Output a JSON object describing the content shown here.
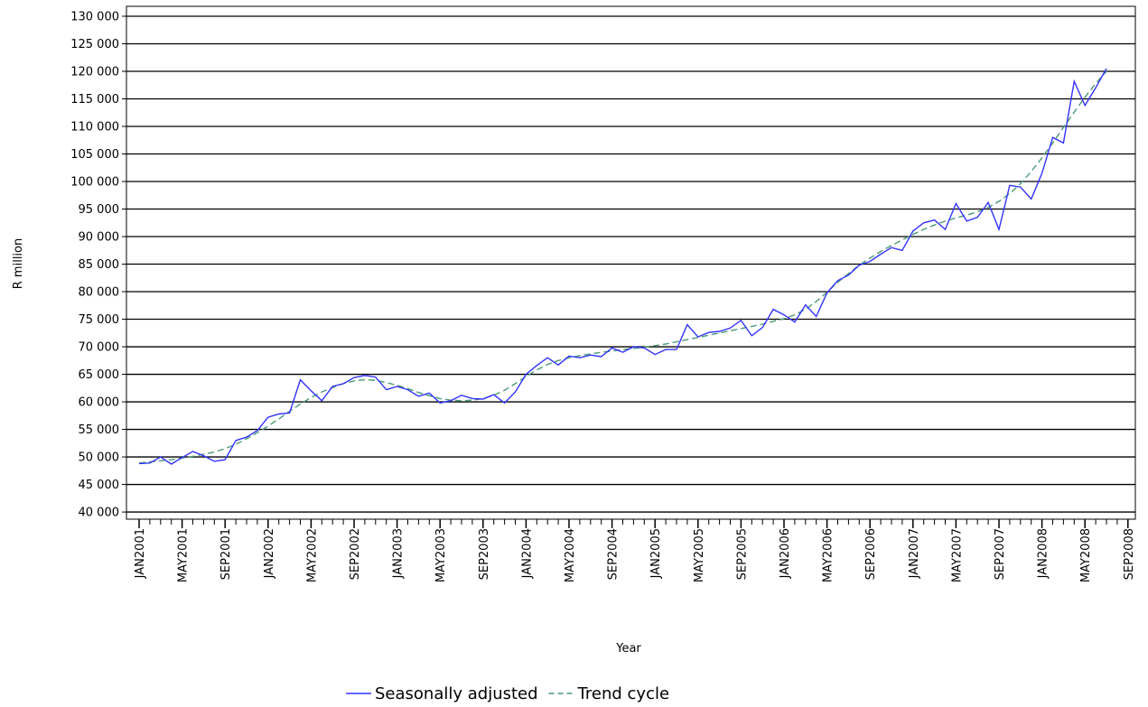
{
  "chart_data": {
    "type": "line",
    "y_label": "R million",
    "x_label": "Year",
    "categories": [
      "JAN2001",
      null,
      null,
      null,
      "MAY2001",
      null,
      null,
      null,
      "SEP2001",
      null,
      null,
      null,
      "JAN2002",
      null,
      null,
      null,
      "MAY2002",
      null,
      null,
      null,
      "SEP2002",
      null,
      null,
      null,
      "JAN2003",
      null,
      null,
      null,
      "MAY2003",
      null,
      null,
      null,
      "SEP2003",
      null,
      null,
      null,
      "JAN2004",
      null,
      null,
      null,
      "MAY2004",
      null,
      null,
      null,
      "SEP2004",
      null,
      null,
      null,
      "JAN2005",
      null,
      null,
      null,
      "MAY2005",
      null,
      null,
      null,
      "SEP2005",
      null,
      null,
      null,
      "JAN2006",
      null,
      null,
      null,
      "MAY2006",
      null,
      null,
      null,
      "SEP2006",
      null,
      null,
      null,
      "JAN2007",
      null,
      null,
      null,
      "MAY2007",
      null,
      null,
      null,
      "SEP2007",
      null,
      null,
      null,
      "JAN2008",
      null,
      null,
      null,
      "MAY2008",
      null,
      null,
      null,
      "SEP2008"
    ],
    "series": [
      {
        "name": "Seasonally adjusted",
        "color": "#3333ff",
        "dash": false,
        "values": [
          48800,
          48900,
          50000,
          48700,
          49900,
          51000,
          50200,
          49200,
          49500,
          53000,
          53600,
          54800,
          57200,
          57800,
          58000,
          64000,
          62000,
          60200,
          62800,
          63300,
          64400,
          64800,
          64500,
          62200,
          62800,
          62200,
          61000,
          61600,
          59800,
          60200,
          61200,
          60600,
          60500,
          61300,
          59800,
          61800,
          65000,
          66600,
          68000,
          66700,
          68300,
          68000,
          68500,
          68200,
          69800,
          69000,
          70000,
          69800,
          68600,
          69500,
          69500,
          74000,
          71800,
          72600,
          72800,
          73400,
          74800,
          72000,
          73500,
          76800,
          75800,
          74500,
          77600,
          75500,
          79800,
          82000,
          83000,
          84800,
          85500,
          86800,
          88000,
          87500,
          91000,
          92500,
          93000,
          91300,
          96000,
          92800,
          93500,
          96200,
          91300,
          99300,
          99000,
          96800,
          101500,
          108000,
          107000,
          118200,
          113800,
          117000,
          120500,
          null,
          null
        ]
      },
      {
        "name": "Trend cycle",
        "color": "#4a9a70",
        "dash": true,
        "values": [
          48900,
          49100,
          49300,
          49500,
          49800,
          50100,
          50500,
          50900,
          51500,
          52300,
          53300,
          54400,
          55600,
          56900,
          58300,
          59600,
          60800,
          61800,
          62600,
          63300,
          63800,
          64000,
          63900,
          63500,
          63000,
          62400,
          61700,
          61100,
          60600,
          60300,
          60200,
          60300,
          60600,
          61200,
          62100,
          63300,
          64600,
          65800,
          66800,
          67500,
          68000,
          68400,
          68700,
          69000,
          69200,
          69500,
          69700,
          69900,
          70200,
          70500,
          70900,
          71300,
          71700,
          72100,
          72500,
          72900,
          73300,
          73700,
          74100,
          74600,
          75100,
          75800,
          76800,
          78200,
          79900,
          81700,
          83300,
          84800,
          86100,
          87300,
          88400,
          89400,
          90400,
          91300,
          92100,
          92800,
          93400,
          93900,
          94500,
          95300,
          96400,
          97800,
          99600,
          101800,
          104300,
          107000,
          109800,
          112600,
          115300,
          117800,
          120000,
          null,
          null
        ]
      }
    ],
    "ylim": [
      38700,
      131800
    ],
    "yticks": [
      {
        "value": 40000,
        "label": "40 000"
      },
      {
        "value": 45000,
        "label": "45 000"
      },
      {
        "value": 50000,
        "label": "50 000"
      },
      {
        "value": 55000,
        "label": "55 000"
      },
      {
        "value": 60000,
        "label": "60 000"
      },
      {
        "value": 65000,
        "label": "65 000"
      },
      {
        "value": 70000,
        "label": "70 000"
      },
      {
        "value": 75000,
        "label": "75 000"
      },
      {
        "value": 80000,
        "label": "80 000"
      },
      {
        "value": 85000,
        "label": "85 000"
      },
      {
        "value": 90000,
        "label": "90 000"
      },
      {
        "value": 95000,
        "label": "95 000"
      },
      {
        "value": 100000,
        "label": "100 000"
      },
      {
        "value": 105000,
        "label": "105 000"
      },
      {
        "value": 110000,
        "label": "110 000"
      },
      {
        "value": 115000,
        "label": "115 000"
      },
      {
        "value": 120000,
        "label": "120 000"
      },
      {
        "value": 125000,
        "label": "125 000"
      },
      {
        "value": 130000,
        "label": "130 000"
      }
    ],
    "grid": true,
    "legend": "bottom"
  }
}
